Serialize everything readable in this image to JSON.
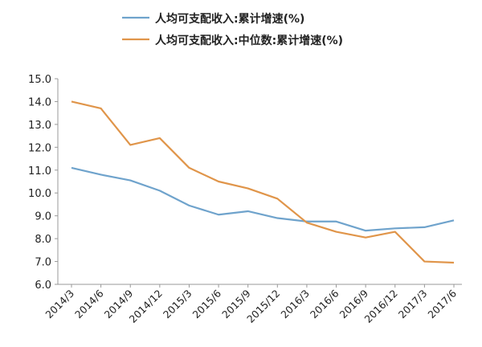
{
  "chart_data": {
    "type": "line",
    "categories": [
      "2014/3",
      "2014/6",
      "2014/9",
      "2014/12",
      "2015/3",
      "2015/6",
      "2015/9",
      "2015/12",
      "2016/3",
      "2016/6",
      "2016/9",
      "2016/12",
      "2017/3",
      "2017/6"
    ],
    "series": [
      {
        "name": "人均可支配收入:累计增速(%)",
        "color": "#6fa3cc",
        "values": [
          11.1,
          10.8,
          10.55,
          10.1,
          9.45,
          9.05,
          9.2,
          8.9,
          8.75,
          8.75,
          8.35,
          8.45,
          8.5,
          8.8
        ]
      },
      {
        "name": "人均可支配收入:中位数:累计增速(%)",
        "color": "#e0954a",
        "values": [
          14.0,
          13.7,
          12.1,
          12.4,
          11.1,
          10.5,
          10.2,
          9.75,
          8.7,
          8.3,
          8.05,
          8.3,
          7.0,
          6.95
        ]
      }
    ],
    "ylim": [
      6.0,
      15.0
    ],
    "yticks": [
      "6.0",
      "7.0",
      "8.0",
      "9.0",
      "10.0",
      "11.0",
      "12.0",
      "13.0",
      "14.0",
      "15.0"
    ],
    "grid": false,
    "legend": "top",
    "title": "",
    "xlabel": "",
    "ylabel": ""
  }
}
